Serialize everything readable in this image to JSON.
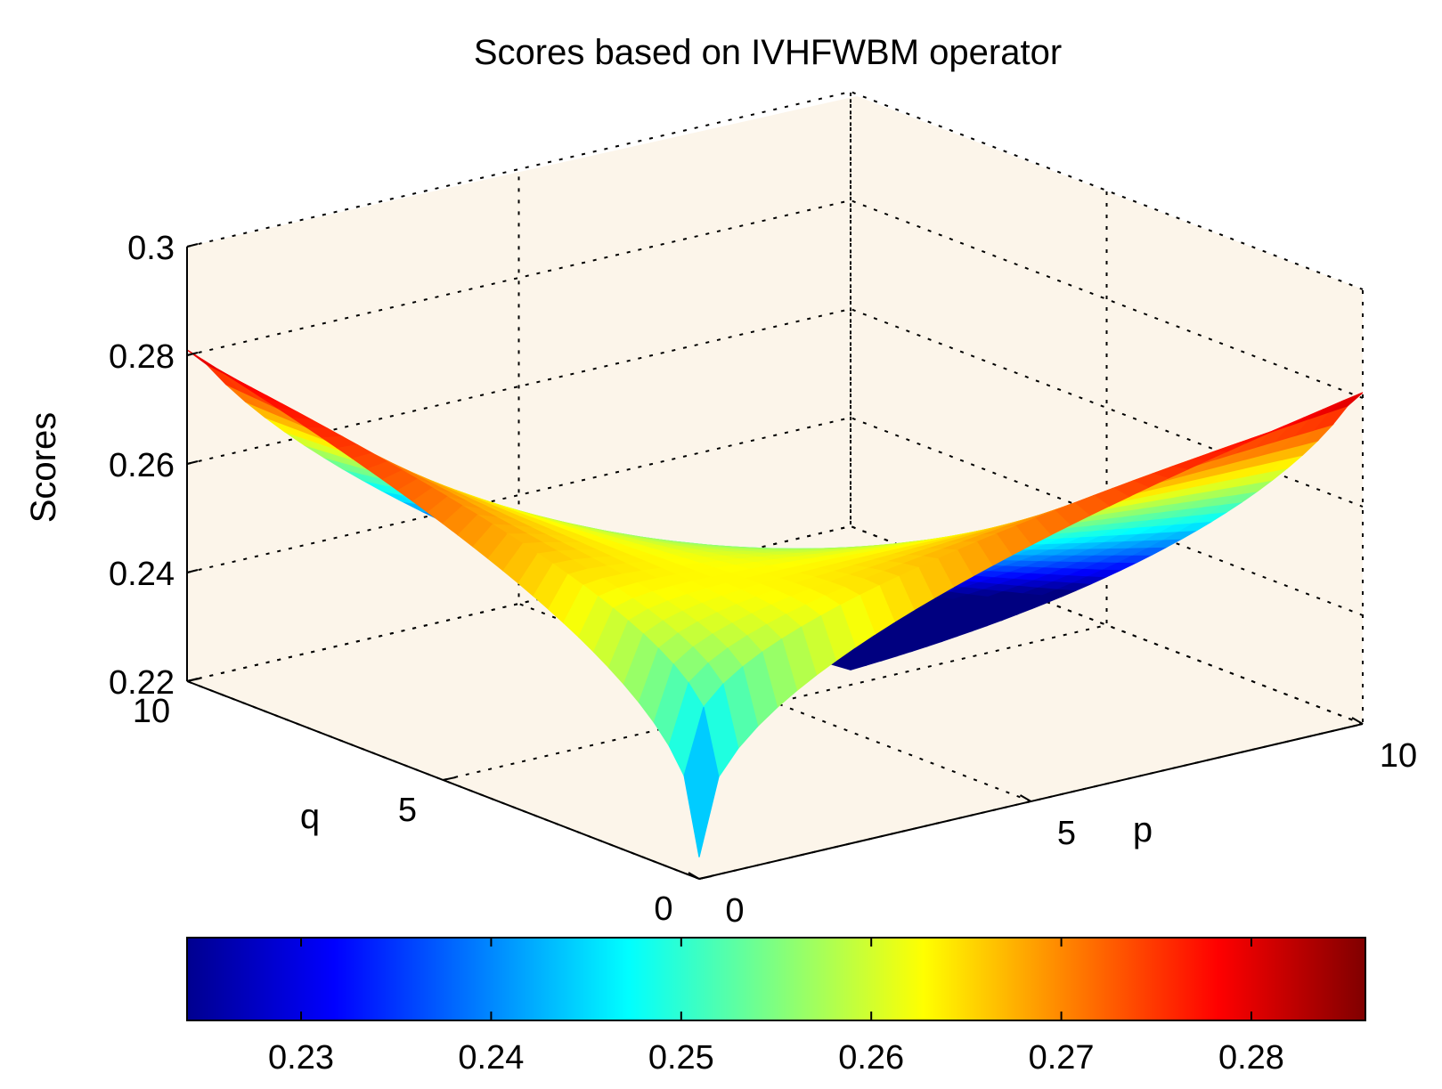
{
  "chart_data": {
    "type": "surface",
    "title": "Scores based on IVHFWBM operator",
    "xlabel": "p",
    "ylabel": "q",
    "zlabel": "Scores",
    "x_range": [
      0,
      10
    ],
    "y_range": [
      0,
      10
    ],
    "zlim": [
      0.22,
      0.3
    ],
    "x_ticks": [
      0,
      5,
      10
    ],
    "y_ticks": [
      0,
      5,
      10
    ],
    "z_ticks": [
      0.22,
      0.24,
      0.26,
      0.28,
      0.3
    ],
    "z_tick_labels": [
      "0.22",
      "0.24",
      "0.26",
      "0.28",
      "0.3"
    ],
    "colormap": "jet",
    "grid": true,
    "corner_values": {
      "p0_q0": 0.224,
      "p10_q0": 0.281,
      "p0_q10": 0.281,
      "p10_q10": 0.286
    },
    "colorbar": {
      "range": [
        0.224,
        0.286
      ],
      "ticks": [
        0.23,
        0.24,
        0.25,
        0.26,
        0.27,
        0.28
      ],
      "tick_labels": [
        "0.23",
        "0.24",
        "0.25",
        "0.26",
        "0.27",
        "0.28"
      ],
      "location": "bottom"
    },
    "background": "#fcf5ea"
  }
}
